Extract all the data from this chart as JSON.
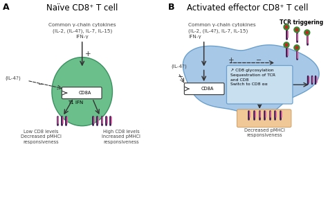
{
  "title_a": "Naïve CD8⁺ T cell",
  "title_b": "Activated effector CD8⁺ T cell",
  "label_a": "A",
  "label_b": "B",
  "cytokines_text": "Common γ-chain cytokines\n(IL-2, (IL-4?), IL-7, IL-15)\nIFN-γ",
  "il4_text": "(IL-4?)",
  "cd8a_text": "CD8A",
  "t1ifn_text": "T1 IFN",
  "low_cd8_text": "Low CD8 levels\nDecreased pMHCI\nresponsiveness",
  "high_cd8_text": "High CD8 levels\nIncreased pMHCI\nresponsiveness",
  "tcr_text": "TCR triggering",
  "box_text": "↗ CD8 glycosylation\nSequestration of TCR\nand CD8\nSwitch to CD8 αα",
  "decreased_text": "Decreased pMHCI\nresponsiveness",
  "cell_color_naive": "#6abf8a",
  "cell_color_activated": "#a8c8e8",
  "background_color": "#ffffff",
  "text_color": "#404040",
  "arrow_color": "#333333",
  "box_color": "#c8dff0",
  "plus_color": "#333333",
  "minus_color": "#333333",
  "dark_purple": "#3a1850",
  "pink_color": "#e060a0",
  "green_blob": "#3a8830",
  "red_dot": "#cc2020",
  "peach_color": "#f0c898"
}
